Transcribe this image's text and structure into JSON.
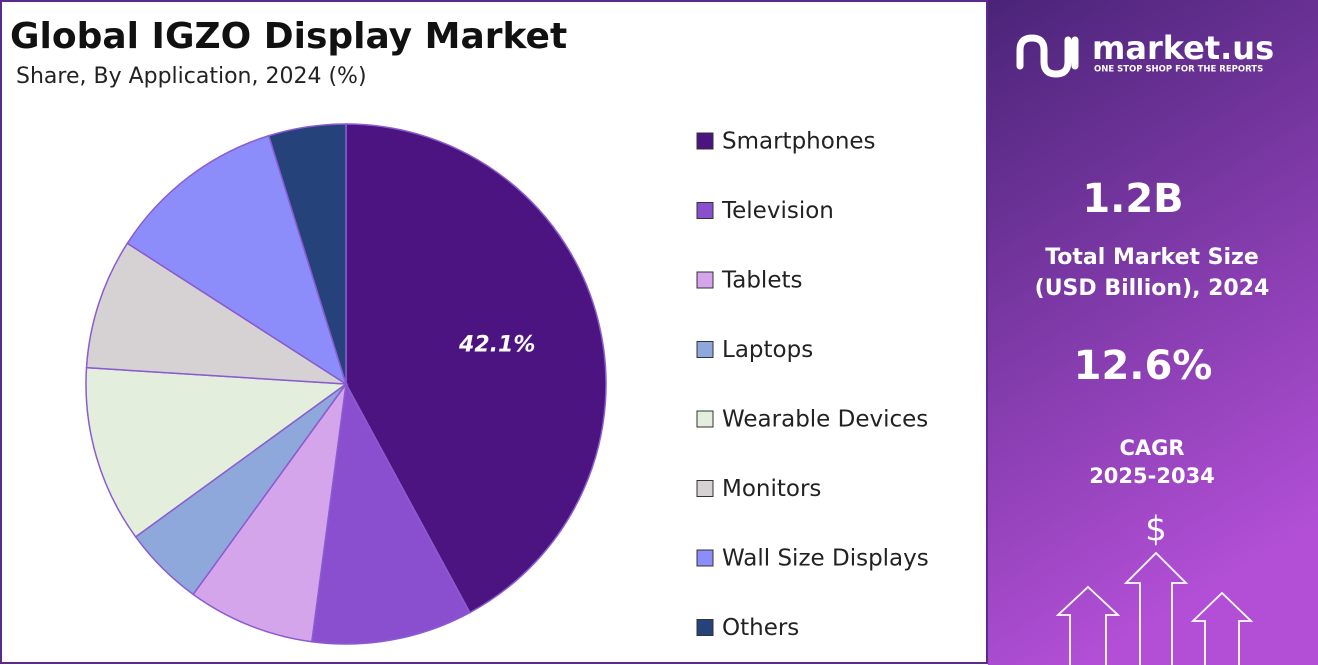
{
  "chart_data": {
    "type": "pie",
    "title": "Global IGZO Display Market",
    "subtitle": "Share, By Application, 2024 (%)",
    "categories": [
      "Smartphones",
      "Television",
      "Tablets",
      "Laptops",
      "Wearable Devices",
      "Monitors",
      "Wall Size Displays",
      "Others"
    ],
    "values": [
      42.1,
      10.0,
      7.9,
      5.0,
      11.0,
      8.1,
      11.1,
      4.8
    ],
    "value_labels": [
      "42.1%",
      null,
      null,
      null,
      null,
      null,
      null,
      null
    ],
    "colors": [
      "#4b1480",
      "#8a4fcf",
      "#d4a5eb",
      "#8fa8dc",
      "#e3eedc",
      "#d6d2d4",
      "#8c8cfb",
      "#25427a"
    ],
    "legend": "right"
  },
  "panel": {
    "brand": "market.us",
    "tagline": "ONE STOP SHOP FOR THE REPORTS",
    "market_size": "1.2B",
    "market_size_label": [
      "Total Market Size",
      "(USD Billion), 2024"
    ],
    "cagr": "12.6%",
    "cagr_label": [
      "CAGR",
      "2025-2034"
    ],
    "currency_icon": "$"
  }
}
